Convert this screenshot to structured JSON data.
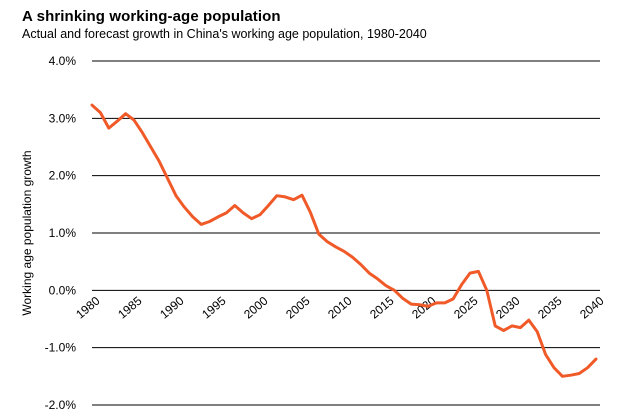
{
  "chart_data": {
    "type": "line",
    "title": "A shrinking working-age population",
    "subtitle": "Actual and forecast growth in China's working age population, 1980-2040",
    "xlabel": "",
    "ylabel": "Working age population growth",
    "ylim": [
      -2.0,
      4.0
    ],
    "yticks": [
      "4.0%",
      "3.0%",
      "2.0%",
      "1.0%",
      "0.0%",
      "-1.0%",
      "-2.0%"
    ],
    "ytick_values": [
      4,
      3,
      2,
      1,
      0,
      -1,
      -2
    ],
    "xlim": [
      1980,
      2040
    ],
    "xticks": [
      "1980",
      "1985",
      "1990",
      "1995",
      "2000",
      "2005",
      "2010",
      "2015",
      "2020",
      "2025",
      "2030",
      "2035",
      "2040"
    ],
    "xtick_values": [
      1980,
      1985,
      1990,
      1995,
      2000,
      2005,
      2010,
      2015,
      2020,
      2025,
      2030,
      2035,
      2040
    ],
    "grid": true,
    "series": [
      {
        "name": "Working age population growth",
        "color": "#f05a28",
        "x": [
          1980,
          1981,
          1982,
          1983,
          1984,
          1985,
          1986,
          1987,
          1988,
          1989,
          1990,
          1991,
          1992,
          1993,
          1994,
          1995,
          1996,
          1997,
          1998,
          1999,
          2000,
          2001,
          2002,
          2003,
          2004,
          2005,
          2006,
          2007,
          2008,
          2009,
          2010,
          2011,
          2012,
          2013,
          2014,
          2015,
          2016,
          2017,
          2018,
          2019,
          2020,
          2021,
          2022,
          2023,
          2024,
          2025,
          2026,
          2027,
          2028,
          2029,
          2030,
          2031,
          2032,
          2033,
          2034,
          2035,
          2036,
          2037,
          2038,
          2039,
          2040
        ],
        "values": [
          3.23,
          3.1,
          2.83,
          2.95,
          3.08,
          2.97,
          2.75,
          2.5,
          2.25,
          1.95,
          1.65,
          1.45,
          1.28,
          1.15,
          1.2,
          1.28,
          1.35,
          1.48,
          1.35,
          1.25,
          1.32,
          1.48,
          1.65,
          1.63,
          1.58,
          1.66,
          1.36,
          0.98,
          0.85,
          0.76,
          0.68,
          0.58,
          0.45,
          0.3,
          0.2,
          0.08,
          0.0,
          -0.14,
          -0.24,
          -0.25,
          -0.28,
          -0.22,
          -0.22,
          -0.15,
          0.1,
          0.3,
          0.33,
          0.0,
          -0.62,
          -0.7,
          -0.62,
          -0.65,
          -0.52,
          -0.72,
          -1.12,
          -1.35,
          -1.5,
          -1.48,
          -1.45,
          -1.35,
          -1.2
        ]
      }
    ]
  }
}
